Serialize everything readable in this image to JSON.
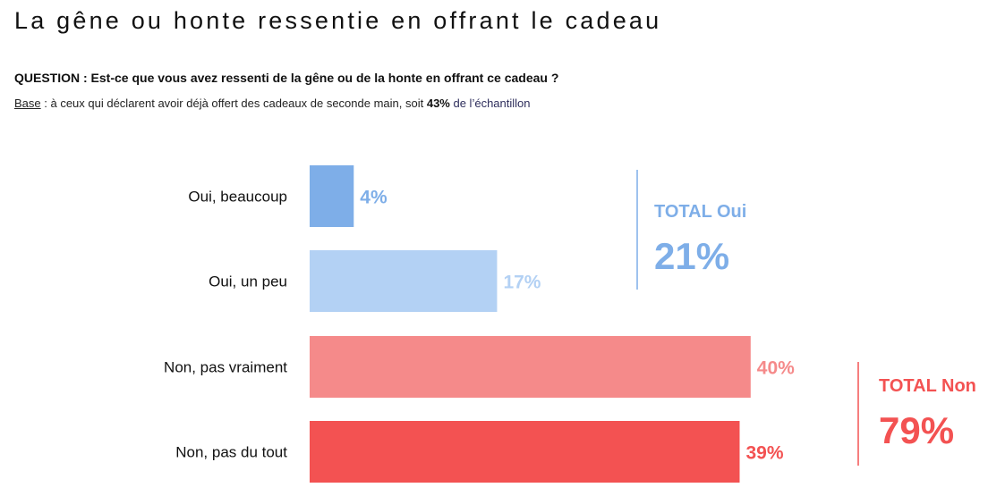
{
  "header": {
    "title": "La gêne ou honte ressentie en offrant le cadeau",
    "question": "QUESTION : Est-ce que vous avez ressenti de la gêne ou de la honte en offrant ce cadeau ?",
    "base_label": "Base",
    "base_text": " : à ceux qui déclarent avoir déjà offert des cadeaux de seconde main, soit ",
    "base_pct": "43%",
    "base_tail": " de l’échantillon"
  },
  "chart_data": {
    "type": "bar",
    "orientation": "horizontal",
    "categories": [
      "Oui, beaucoup",
      "Oui, un peu",
      "Non, pas vraiment",
      "Non, pas du tout"
    ],
    "values": [
      4,
      17,
      40,
      39
    ],
    "value_labels": [
      "4%",
      "17%",
      "40%",
      "39%"
    ],
    "colors": [
      "#7eaee8",
      "#b3d1f4",
      "#f58a8a",
      "#f35252"
    ],
    "label_colors": [
      "#7eaee8",
      "#b3d1f4",
      "#f58a8a",
      "#f35252"
    ],
    "xlim": [
      0,
      40
    ],
    "grid": false,
    "groups": [
      {
        "title": "TOTAL Oui",
        "value": "21%",
        "color": "#7eaee8",
        "categories": [
          0,
          1
        ]
      },
      {
        "title": "TOTAL Non",
        "value": "79%",
        "color": "#f35252",
        "categories": [
          2,
          3
        ]
      }
    ]
  }
}
